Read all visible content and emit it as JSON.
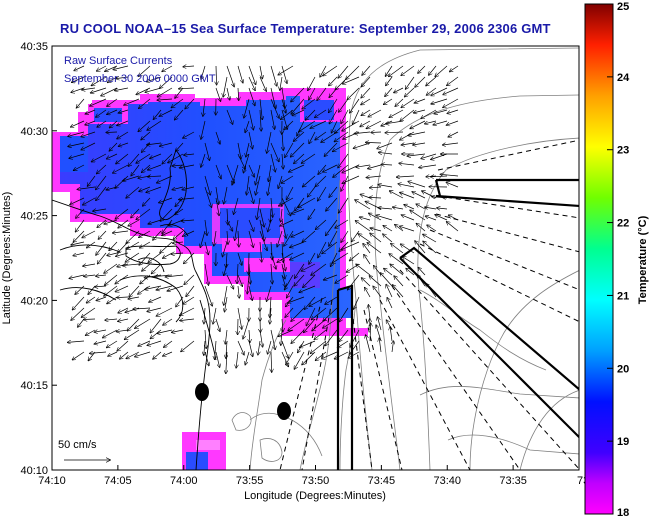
{
  "title": "RU COOL  NOAA–15  Sea Surface Temperature:  September 29, 2006 2306 GMT",
  "annotation": {
    "line1": "Raw Surface Currents",
    "line2": "September 30 2006 0000 GMT"
  },
  "scale_label": "50 cm/s",
  "xlabel": "Longitude (Degrees:Minutes)",
  "ylabel": "Latitude (Degrees:Minutes)",
  "x_ticks": [
    "74:10",
    "74:05",
    "74:00",
    "73:55",
    "73:50",
    "73:45",
    "73:40",
    "73:35",
    "73:3"
  ],
  "y_ticks": [
    "40:35",
    "40:30",
    "40:25",
    "40:20",
    "40:15",
    "40:10"
  ],
  "colorbar": {
    "label": "Temperature (°C)",
    "min": 18,
    "max": 25,
    "ticks": [
      "25",
      "24",
      "23",
      "22",
      "21",
      "20",
      "19",
      "18"
    ],
    "stops": [
      "#ff00ff",
      "#8000ff",
      "#0000ff",
      "#00a0ff",
      "#00ffff",
      "#00ff80",
      "#80ff00",
      "#ffff00",
      "#ff8000",
      "#ff0000",
      "#800000"
    ]
  },
  "colors": {
    "title": "#1a1aa8",
    "sst_blue": "#2a4cff",
    "sst_magenta": "#ff30ff",
    "coast": "#000000",
    "contour": "#808080"
  }
}
